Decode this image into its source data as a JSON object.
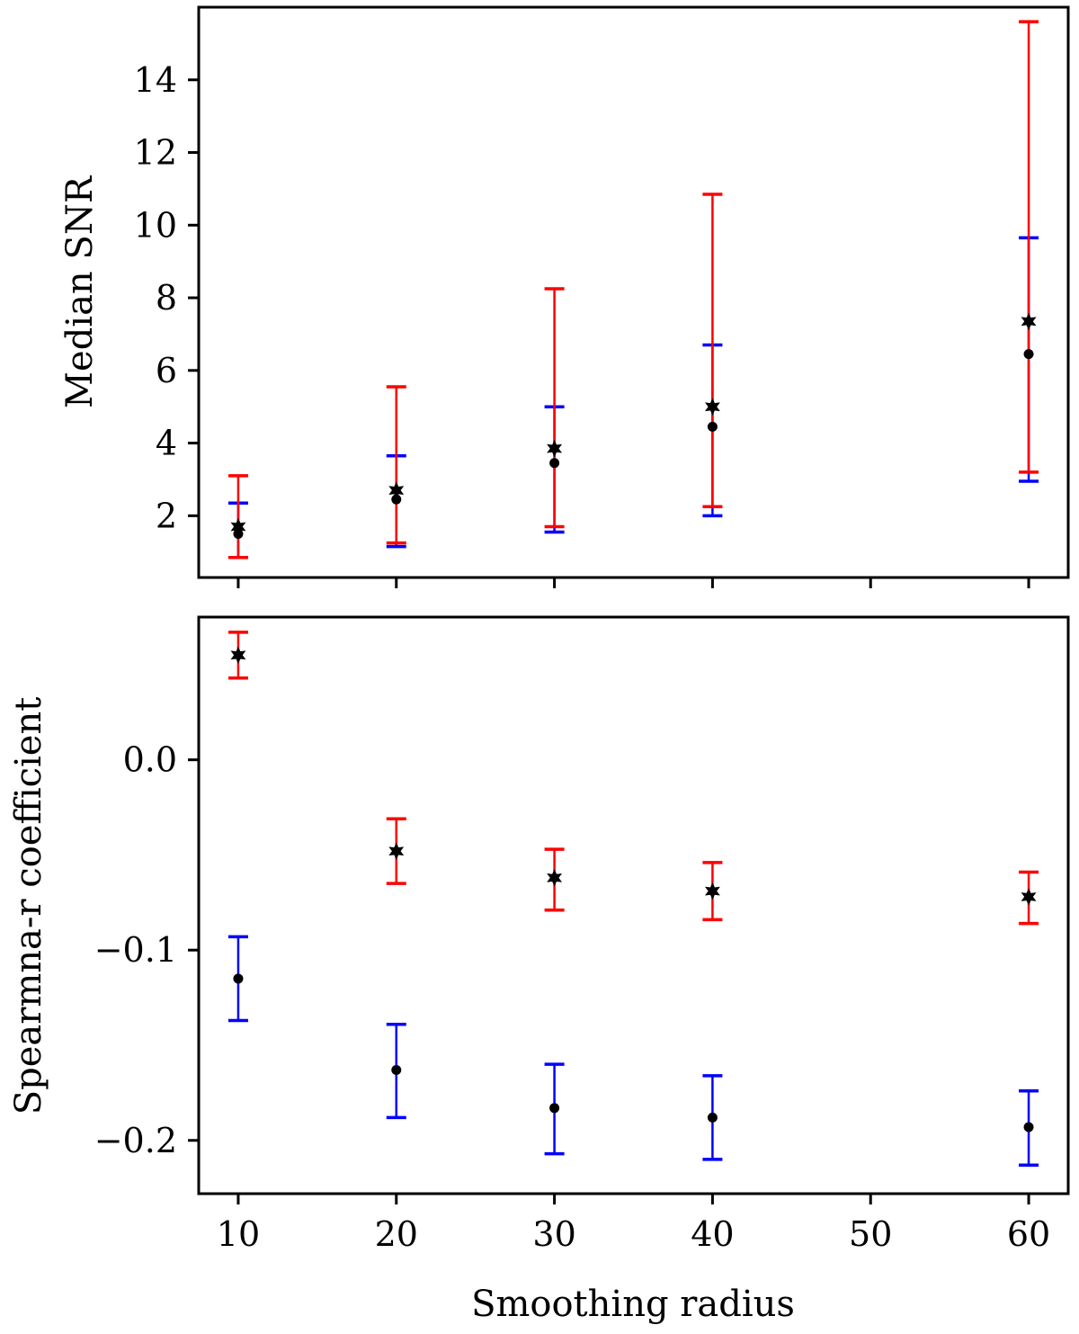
{
  "chart_data": [
    {
      "type": "scatter",
      "title": "",
      "ylabel": "Median SNR",
      "xlabel": "",
      "xlim": [
        7.5,
        62.5
      ],
      "ylim": [
        0.3,
        16.0
      ],
      "xticks": [
        10,
        20,
        30,
        40,
        50,
        60
      ],
      "yticks": [
        2,
        4,
        6,
        8,
        10,
        12,
        14
      ],
      "ytick_labels": [
        "2",
        "4",
        "6",
        "8",
        "10",
        "12",
        "14"
      ],
      "series": [
        {
          "name": "blue errorbars (circle)",
          "color": "#0000ff",
          "marker": "circle",
          "x": [
            10,
            20,
            30,
            40,
            60
          ],
          "y": [
            1.5,
            2.45,
            3.45,
            4.45,
            6.45
          ],
          "lower": [
            0.85,
            1.15,
            1.55,
            2.0,
            2.95
          ],
          "upper": [
            2.35,
            3.65,
            5.0,
            6.7,
            9.65
          ]
        },
        {
          "name": "red errorbars (star)",
          "color": "#ff0000",
          "marker": "star",
          "x": [
            10,
            20,
            30,
            40,
            60
          ],
          "y": [
            1.7,
            2.7,
            3.85,
            5.0,
            7.35
          ],
          "lower": [
            0.85,
            1.25,
            1.7,
            2.25,
            3.2
          ],
          "upper": [
            3.1,
            5.55,
            8.25,
            10.85,
            15.6
          ]
        }
      ]
    },
    {
      "type": "scatter",
      "title": "",
      "ylabel": "Spearmna-r coefficient",
      "xlabel": "Smoothing radius",
      "xlim": [
        7.5,
        62.5
      ],
      "ylim": [
        -0.228,
        0.075
      ],
      "xticks": [
        10,
        20,
        30,
        40,
        50,
        60
      ],
      "xtick_labels": [
        "10",
        "20",
        "30",
        "40",
        "50",
        "60"
      ],
      "yticks": [
        -0.2,
        -0.1,
        0.0
      ],
      "ytick_labels": [
        "−0.2",
        "−0.1",
        "0.0"
      ],
      "series": [
        {
          "name": "blue errorbars (circle)",
          "color": "#0000ff",
          "marker": "circle",
          "x": [
            10,
            20,
            30,
            40,
            60
          ],
          "y": [
            -0.115,
            -0.163,
            -0.183,
            -0.188,
            -0.193
          ],
          "lower": [
            -0.137,
            -0.188,
            -0.207,
            -0.21,
            -0.213
          ],
          "upper": [
            -0.093,
            -0.139,
            -0.16,
            -0.166,
            -0.174
          ]
        },
        {
          "name": "red errorbars (star)",
          "color": "#ff0000",
          "marker": "star",
          "x": [
            10,
            20,
            30,
            40,
            60
          ],
          "y": [
            0.055,
            -0.048,
            -0.062,
            -0.069,
            -0.072
          ],
          "lower": [
            0.043,
            -0.065,
            -0.079,
            -0.084,
            -0.086
          ],
          "upper": [
            0.067,
            -0.031,
            -0.047,
            -0.054,
            -0.059
          ]
        }
      ]
    }
  ]
}
